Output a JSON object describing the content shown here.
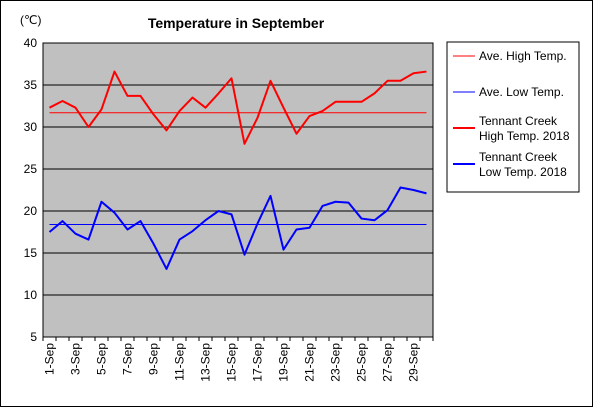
{
  "chart_data": {
    "type": "line",
    "title": "Temperature in September",
    "ylabel": "(℃)",
    "ylim": [
      5,
      40
    ],
    "yticks": [
      5,
      10,
      15,
      20,
      25,
      30,
      35,
      40
    ],
    "grid": true,
    "legend_placement": "right",
    "x": [
      "1-Sep",
      "2-Sep",
      "3-Sep",
      "4-Sep",
      "5-Sep",
      "6-Sep",
      "7-Sep",
      "8-Sep",
      "9-Sep",
      "10-Sep",
      "11-Sep",
      "12-Sep",
      "13-Sep",
      "14-Sep",
      "15-Sep",
      "16-Sep",
      "17-Sep",
      "18-Sep",
      "19-Sep",
      "20-Sep",
      "21-Sep",
      "22-Sep",
      "23-Sep",
      "24-Sep",
      "25-Sep",
      "26-Sep",
      "27-Sep",
      "28-Sep",
      "29-Sep",
      "30-Sep"
    ],
    "xtick_labels": [
      "1-Sep",
      "3-Sep",
      "5-Sep",
      "7-Sep",
      "9-Sep",
      "11-Sep",
      "13-Sep",
      "15-Sep",
      "17-Sep",
      "19-Sep",
      "21-Sep",
      "23-Sep",
      "25-Sep",
      "27-Sep",
      "29-Sep"
    ],
    "series": [
      {
        "name": "Ave. High Temp.",
        "color": "#ff0000",
        "style": "thin",
        "values": [
          31.7,
          31.7,
          31.7,
          31.7,
          31.7,
          31.7,
          31.7,
          31.7,
          31.7,
          31.7,
          31.7,
          31.7,
          31.7,
          31.7,
          31.7,
          31.7,
          31.7,
          31.7,
          31.7,
          31.7,
          31.7,
          31.7,
          31.7,
          31.7,
          31.7,
          31.7,
          31.7,
          31.7,
          31.7,
          31.7
        ]
      },
      {
        "name": "Ave. Low Temp.",
        "color": "#0000ff",
        "style": "thin",
        "values": [
          18.4,
          18.4,
          18.4,
          18.4,
          18.4,
          18.4,
          18.4,
          18.4,
          18.4,
          18.4,
          18.4,
          18.4,
          18.4,
          18.4,
          18.4,
          18.4,
          18.4,
          18.4,
          18.4,
          18.4,
          18.4,
          18.4,
          18.4,
          18.4,
          18.4,
          18.4,
          18.4,
          18.4,
          18.4,
          18.4
        ]
      },
      {
        "name": "Tennant Creek High Temp. 2018",
        "name_lines": [
          "Tennant Creek",
          "High Temp. 2018"
        ],
        "color": "#ff0000",
        "style": "thick",
        "values": [
          32.3,
          33.1,
          32.3,
          30.0,
          32.1,
          36.6,
          33.7,
          33.7,
          31.5,
          29.6,
          31.9,
          33.5,
          32.3,
          34.0,
          35.8,
          28.0,
          31.1,
          35.5,
          32.3,
          29.2,
          31.3,
          31.9,
          33.0,
          33.0,
          33.0,
          34.0,
          35.5,
          35.5,
          36.4,
          36.6
        ]
      },
      {
        "name": "Tennant Creek Low Temp. 2018",
        "name_lines": [
          "Tennant Creek",
          "Low Temp. 2018"
        ],
        "color": "#0000ff",
        "style": "thick",
        "values": [
          17.5,
          18.8,
          17.3,
          16.6,
          21.1,
          19.8,
          17.8,
          18.8,
          16.1,
          13.1,
          16.6,
          17.6,
          18.9,
          20.0,
          19.6,
          14.8,
          18.5,
          21.8,
          15.4,
          17.8,
          18.0,
          20.6,
          21.1,
          21.0,
          19.1,
          18.9,
          20.1,
          22.8,
          22.5,
          22.1
        ]
      }
    ]
  }
}
